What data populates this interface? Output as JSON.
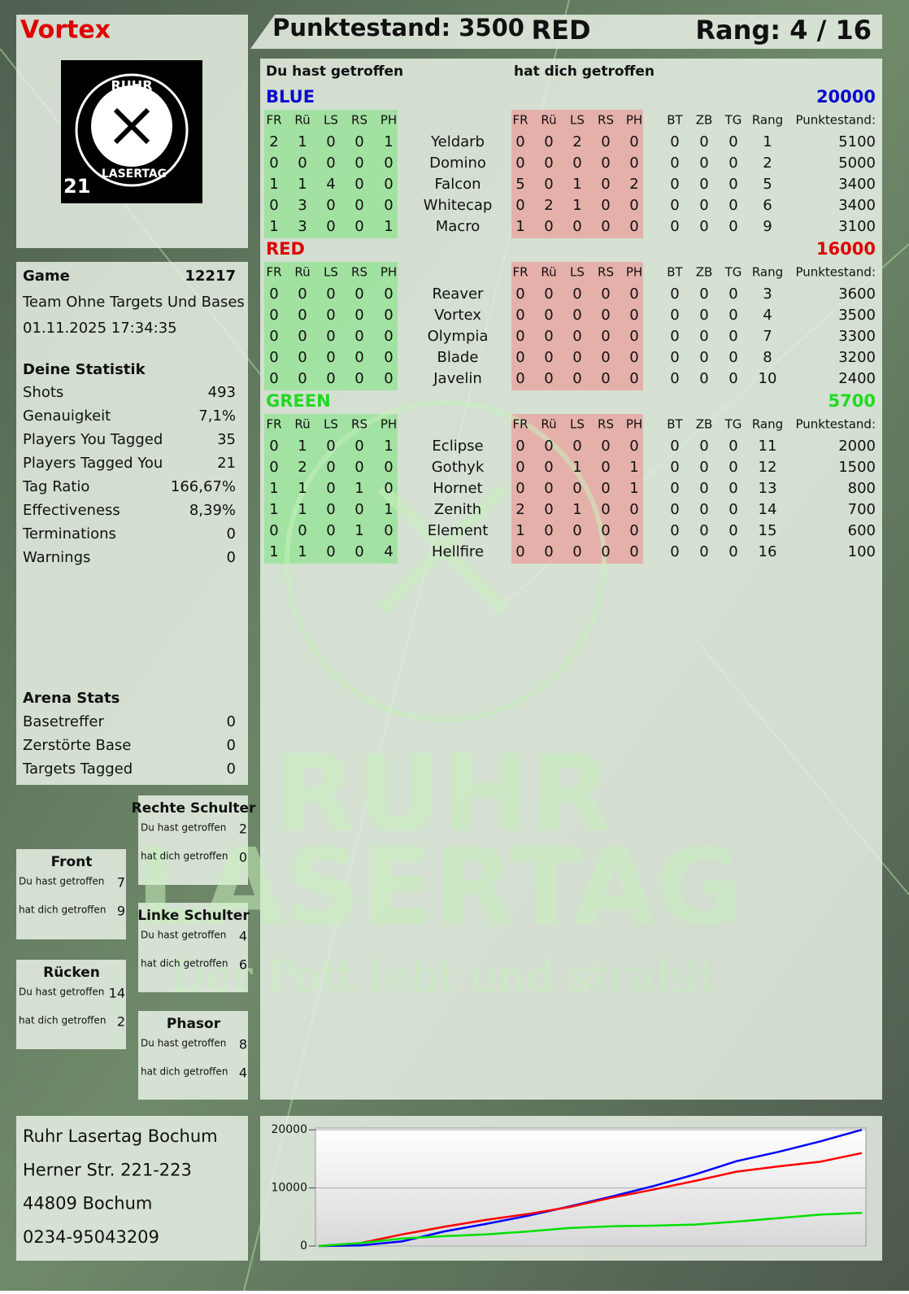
{
  "header": {
    "player": "Vortex",
    "score": "Punktestand: 3500",
    "team": "RED",
    "rank": "Rang: 4 / 16"
  },
  "logo": {
    "top": "RUHR",
    "bottom": "LASERTAG",
    "number": "21"
  },
  "game": {
    "label": "Game",
    "id": "12217",
    "mode": "Team Ohne Targets Und Bases",
    "datetime": "01.11.2025 17:34:35"
  },
  "stats": {
    "title": "Deine Statistik",
    "rows": [
      [
        "Shots",
        "493"
      ],
      [
        "Genauigkeit",
        "7,1%"
      ],
      [
        "Players You Tagged",
        "35"
      ],
      [
        "Players Tagged You",
        "21"
      ],
      [
        "Tag Ratio",
        "166,67%"
      ],
      [
        "Effectiveness",
        "8,39%"
      ],
      [
        "Terminations",
        "0"
      ],
      [
        "Warnings",
        "0"
      ]
    ]
  },
  "arena": {
    "title": "Arena Stats",
    "rows": [
      [
        "Basetreffer",
        "0"
      ],
      [
        "Zerstörte Base",
        "0"
      ],
      [
        "Targets Tagged",
        "0"
      ]
    ]
  },
  "zones": [
    {
      "title": "Rechte Schulter",
      "rows": [
        [
          "Du hast getroffen",
          "2"
        ],
        [
          "hat dich getroffen",
          "0"
        ]
      ]
    },
    {
      "title": "Front",
      "rows": [
        [
          "Du hast getroffen",
          "7"
        ],
        [
          "hat dich getroffen",
          "9"
        ]
      ]
    },
    {
      "title": "Linke Schulter",
      "rows": [
        [
          "Du hast getroffen",
          "4"
        ],
        [
          "hat dich getroffen",
          "6"
        ]
      ]
    },
    {
      "title": "Rücken",
      "rows": [
        [
          "Du hast getroffen",
          "14"
        ],
        [
          "hat dich getroffen",
          "2"
        ]
      ]
    },
    {
      "title": "Phasor",
      "rows": [
        [
          "Du hast getroffen",
          "8"
        ],
        [
          "hat dich getroffen",
          "4"
        ]
      ]
    }
  ],
  "address": [
    "Ruhr Lasertag Bochum",
    "Herner Str. 221-223",
    "44809 Bochum",
    "0234-95043209"
  ],
  "watermark": {
    "line1": "RUHR",
    "line2": "LASERTAG",
    "slogan": "Der Pott lebt und strahlt"
  },
  "scoreboard": {
    "you_hit": "Du hast getroffen",
    "hit_you": "hat dich getroffen",
    "hit_columns": [
      "FR",
      "Rü",
      "LS",
      "RS",
      "PH"
    ],
    "stat_columns": [
      "BT",
      "ZB",
      "TG",
      "Rang",
      "Punktestand:"
    ],
    "teams": [
      {
        "name": "BLUE",
        "color": "#0a0ad0",
        "total": 20000,
        "players": [
          {
            "name": "Yeldarb",
            "hit": [
              2,
              1,
              0,
              0,
              1
            ],
            "got": [
              0,
              0,
              2,
              0,
              0
            ],
            "stats": [
              0,
              0,
              0,
              1,
              5100
            ]
          },
          {
            "name": "Domino",
            "hit": [
              0,
              0,
              0,
              0,
              0
            ],
            "got": [
              0,
              0,
              0,
              0,
              0
            ],
            "stats": [
              0,
              0,
              0,
              2,
              5000
            ]
          },
          {
            "name": "Falcon",
            "hit": [
              1,
              1,
              4,
              0,
              0
            ],
            "got": [
              5,
              0,
              1,
              0,
              2
            ],
            "stats": [
              0,
              0,
              0,
              5,
              3400
            ]
          },
          {
            "name": "Whitecap",
            "hit": [
              0,
              3,
              0,
              0,
              0
            ],
            "got": [
              0,
              2,
              1,
              0,
              0
            ],
            "stats": [
              0,
              0,
              0,
              6,
              3400
            ]
          },
          {
            "name": "Macro",
            "hit": [
              1,
              3,
              0,
              0,
              1
            ],
            "got": [
              1,
              0,
              0,
              0,
              0
            ],
            "stats": [
              0,
              0,
              0,
              9,
              3100
            ]
          }
        ]
      },
      {
        "name": "RED",
        "color": "#e00000",
        "total": 16000,
        "players": [
          {
            "name": "Reaver",
            "hit": [
              0,
              0,
              0,
              0,
              0
            ],
            "got": [
              0,
              0,
              0,
              0,
              0
            ],
            "stats": [
              0,
              0,
              0,
              3,
              3600
            ]
          },
          {
            "name": "Vortex",
            "hit": [
              0,
              0,
              0,
              0,
              0
            ],
            "got": [
              0,
              0,
              0,
              0,
              0
            ],
            "stats": [
              0,
              0,
              0,
              4,
              3500
            ]
          },
          {
            "name": "Olympia",
            "hit": [
              0,
              0,
              0,
              0,
              0
            ],
            "got": [
              0,
              0,
              0,
              0,
              0
            ],
            "stats": [
              0,
              0,
              0,
              7,
              3300
            ]
          },
          {
            "name": "Blade",
            "hit": [
              0,
              0,
              0,
              0,
              0
            ],
            "got": [
              0,
              0,
              0,
              0,
              0
            ],
            "stats": [
              0,
              0,
              0,
              8,
              3200
            ]
          },
          {
            "name": "Javelin",
            "hit": [
              0,
              0,
              0,
              0,
              0
            ],
            "got": [
              0,
              0,
              0,
              0,
              0
            ],
            "stats": [
              0,
              0,
              0,
              10,
              2400
            ]
          }
        ]
      },
      {
        "name": "GREEN",
        "color": "#22d822",
        "total": 5700,
        "players": [
          {
            "name": "Eclipse",
            "hit": [
              0,
              1,
              0,
              0,
              1
            ],
            "got": [
              0,
              0,
              0,
              0,
              0
            ],
            "stats": [
              0,
              0,
              0,
              11,
              2000
            ]
          },
          {
            "name": "Gothyk",
            "hit": [
              0,
              2,
              0,
              0,
              0
            ],
            "got": [
              0,
              0,
              1,
              0,
              1
            ],
            "stats": [
              0,
              0,
              0,
              12,
              1500
            ]
          },
          {
            "name": "Hornet",
            "hit": [
              1,
              1,
              0,
              1,
              0
            ],
            "got": [
              0,
              0,
              0,
              0,
              1
            ],
            "stats": [
              0,
              0,
              0,
              13,
              800
            ]
          },
          {
            "name": "Zenith",
            "hit": [
              1,
              1,
              0,
              0,
              1
            ],
            "got": [
              2,
              0,
              1,
              0,
              0
            ],
            "stats": [
              0,
              0,
              0,
              14,
              700
            ]
          },
          {
            "name": "Element",
            "hit": [
              0,
              0,
              0,
              1,
              0
            ],
            "got": [
              1,
              0,
              0,
              0,
              0
            ],
            "stats": [
              0,
              0,
              0,
              15,
              600
            ]
          },
          {
            "name": "Hellfire",
            "hit": [
              1,
              1,
              0,
              0,
              4
            ],
            "got": [
              0,
              0,
              0,
              0,
              0
            ],
            "stats": [
              0,
              0,
              0,
              16,
              100
            ]
          }
        ]
      }
    ]
  },
  "chart_data": {
    "type": "line",
    "categories": [
      null,
      null,
      null,
      null,
      null,
      null,
      null,
      null,
      null,
      null,
      null,
      null,
      null,
      null
    ],
    "ylim": [
      0,
      20300
    ],
    "yticks": [
      0,
      10000,
      20000
    ],
    "grid": true,
    "series": [
      {
        "name": "BLUE",
        "color": "#0000ff",
        "values": [
          0,
          100,
          800,
          2500,
          3800,
          5200,
          6800,
          8500,
          10300,
          12300,
          14600,
          16200,
          18000,
          20000
        ]
      },
      {
        "name": "RED",
        "color": "#ff0000",
        "values": [
          0,
          500,
          2000,
          3300,
          4500,
          5500,
          6700,
          8300,
          9700,
          11200,
          12800,
          13700,
          14500,
          16000
        ]
      },
      {
        "name": "GREEN",
        "color": "#00e000",
        "values": [
          0,
          500,
          1300,
          1700,
          2000,
          2500,
          3100,
          3400,
          3500,
          3700,
          4200,
          4800,
          5400,
          5700
        ]
      }
    ]
  }
}
